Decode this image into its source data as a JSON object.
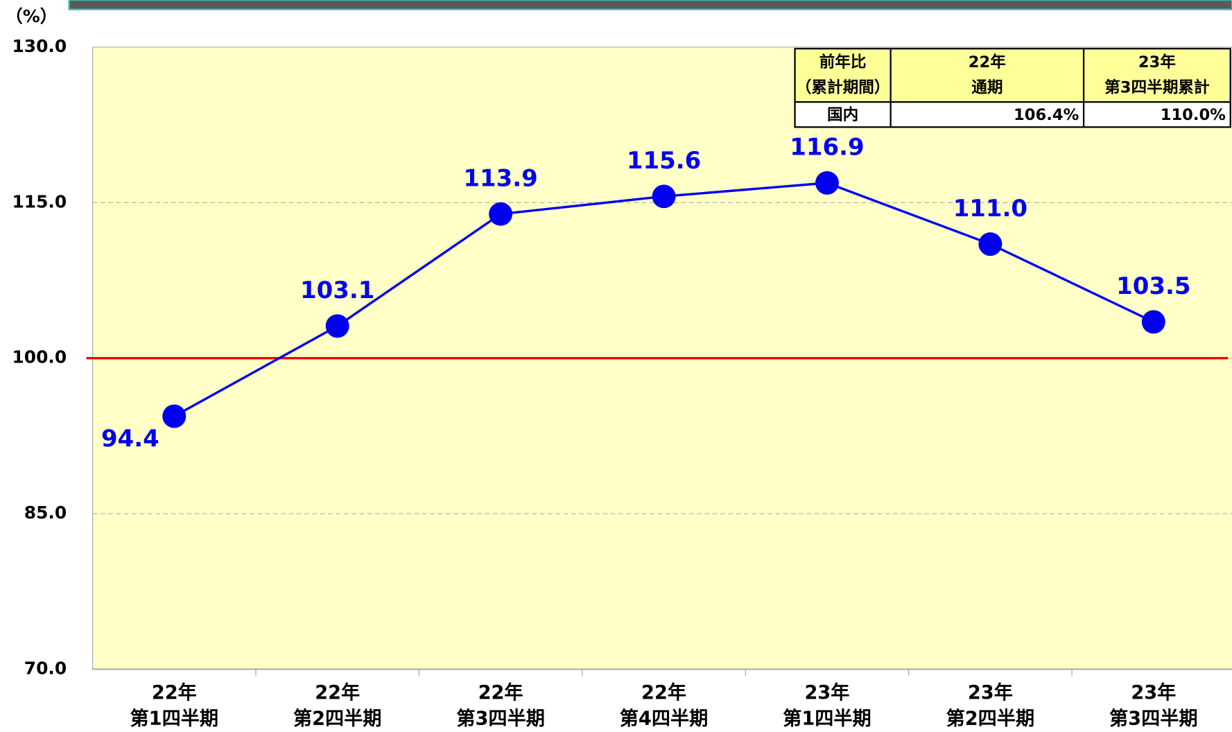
{
  "chart_data": {
    "type": "line",
    "unit_label": "（%）",
    "categories": [
      [
        "22年",
        "第1四半期"
      ],
      [
        "22年",
        "第2四半期"
      ],
      [
        "22年",
        "第3四半期"
      ],
      [
        "22年",
        "第4四半期"
      ],
      [
        "23年",
        "第1四半期"
      ],
      [
        "23年",
        "第2四半期"
      ],
      [
        "23年",
        "第3四半期"
      ]
    ],
    "series": [
      {
        "color": "#0000ee",
        "values": [
          94.4,
          103.1,
          113.9,
          115.6,
          116.9,
          111.0,
          103.5
        ],
        "value_labels": [
          "94.4",
          "103.1",
          "113.9",
          "115.6",
          "116.9",
          "111.0",
          "103.5"
        ]
      }
    ],
    "ylim": [
      70,
      130
    ],
    "yticks": [
      {
        "value": 70,
        "label": "70.0"
      },
      {
        "value": 85,
        "label": "85.0"
      },
      {
        "value": 100,
        "label": "100.0"
      },
      {
        "value": 115,
        "label": "115.0"
      },
      {
        "value": 130,
        "label": "130.0"
      }
    ],
    "reference_line": {
      "value": 100,
      "color": "#ff0000"
    },
    "grid": true
  },
  "table": {
    "header": [
      [
        "前年比",
        "（累計期間）"
      ],
      [
        "22年",
        "通期"
      ],
      [
        "23年",
        "第3四半期累計"
      ]
    ],
    "rows": [
      [
        "国内",
        "106.4%",
        "110.0%"
      ]
    ]
  }
}
